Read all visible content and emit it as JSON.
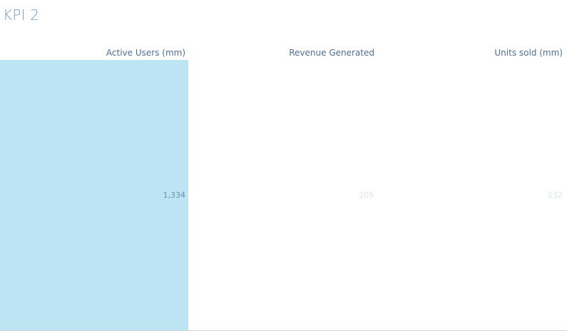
{
  "title": "KPI 2",
  "chart_data": {
    "type": "table",
    "columns": [
      "Active Users (mm)",
      "Revenue Generated",
      "Units sold (mm)"
    ],
    "values": [
      1334,
      205,
      232
    ],
    "value_labels": [
      "1,334",
      "205",
      "232"
    ],
    "highlight_color": "#bde4f2"
  }
}
